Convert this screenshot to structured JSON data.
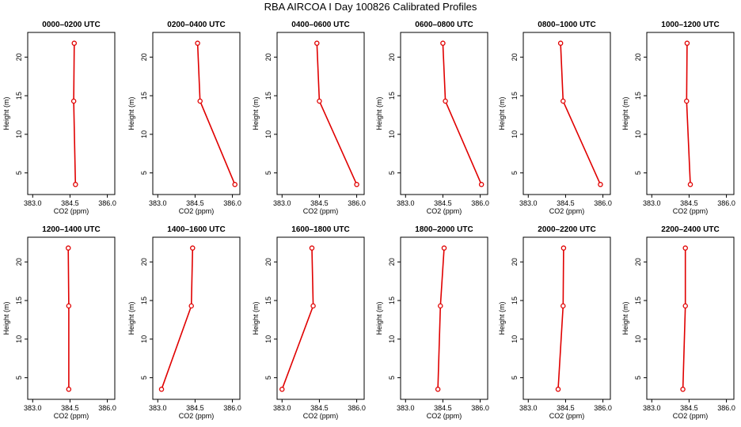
{
  "title": "RBA AIRCOA I  Day 100826  Calibrated Profiles",
  "chart_data": {
    "type": "line",
    "xlabel": "CO2 (ppm)",
    "ylabel": "Height (m)",
    "xlim": [
      382.8,
      386.3
    ],
    "ylim": [
      2.2,
      23.2
    ],
    "xticks": [
      383.0,
      384.5,
      386.0
    ],
    "xtick_labels": [
      "383.0",
      "384.5",
      "386.0"
    ],
    "yticks": [
      5,
      10,
      15,
      20
    ],
    "ytick_labels": [
      "5",
      "10",
      "15",
      "20"
    ],
    "heights": [
      3.5,
      14.3,
      21.8
    ],
    "line_color": "#e00000",
    "panels": [
      {
        "title": "0000–0200 UTC",
        "co2": [
          384.72,
          384.65,
          384.67
        ]
      },
      {
        "title": "0200–0400 UTC",
        "co2": [
          386.1,
          384.7,
          384.6
        ]
      },
      {
        "title": "0400–0600 UTC",
        "co2": [
          386.0,
          384.5,
          384.4
        ]
      },
      {
        "title": "0600–0800 UTC",
        "co2": [
          386.05,
          384.6,
          384.5
        ]
      },
      {
        "title": "0800–1000 UTC",
        "co2": [
          385.9,
          384.4,
          384.3
        ]
      },
      {
        "title": "1000–1200 UTC",
        "co2": [
          384.55,
          384.4,
          384.42
        ]
      },
      {
        "title": "1200–1400 UTC",
        "co2": [
          384.45,
          384.45,
          384.43
        ]
      },
      {
        "title": "1400–1600 UTC",
        "co2": [
          383.15,
          384.35,
          384.4
        ]
      },
      {
        "title": "1600–1800 UTC",
        "co2": [
          383.0,
          384.25,
          384.2
        ]
      },
      {
        "title": "1800–2000 UTC",
        "co2": [
          384.3,
          384.4,
          384.55
        ]
      },
      {
        "title": "2000–2200 UTC",
        "co2": [
          384.2,
          384.4,
          384.42
        ]
      },
      {
        "title": "2200–2400 UTC",
        "co2": [
          384.25,
          384.35,
          384.35
        ]
      }
    ]
  }
}
